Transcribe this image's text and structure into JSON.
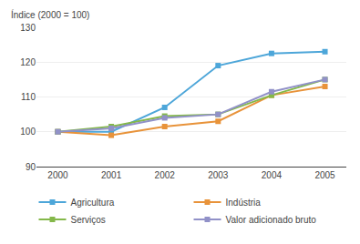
{
  "chart_data": {
    "type": "line",
    "ylabel": "Índice (2000 = 100)",
    "x": [
      2000,
      2001,
      2002,
      2003,
      2004,
      2005
    ],
    "series": [
      {
        "name": "Agricultura",
        "color": "#4da6d9",
        "values": [
          100,
          100,
          107,
          119,
          122.5,
          123
        ]
      },
      {
        "name": "Indústria",
        "color": "#e8933a",
        "values": [
          100,
          99,
          101.5,
          103,
          110.5,
          113
        ]
      },
      {
        "name": "Serviços",
        "color": "#84b84a",
        "values": [
          100,
          101.5,
          104.5,
          105,
          110.5,
          115
        ]
      },
      {
        "name": "Valor adicionado bruto",
        "color": "#9191c8",
        "values": [
          100,
          101,
          104,
          105,
          111.5,
          115
        ]
      }
    ],
    "marker": "square",
    "xlim": [
      1999.6,
      2005.4
    ],
    "xticks": [
      2000,
      2001,
      2002,
      2003,
      2004,
      2005
    ],
    "ylim": [
      90,
      130
    ],
    "yticks": [
      90,
      100,
      110,
      120,
      130
    ],
    "grid": true,
    "legend": "bottom"
  }
}
